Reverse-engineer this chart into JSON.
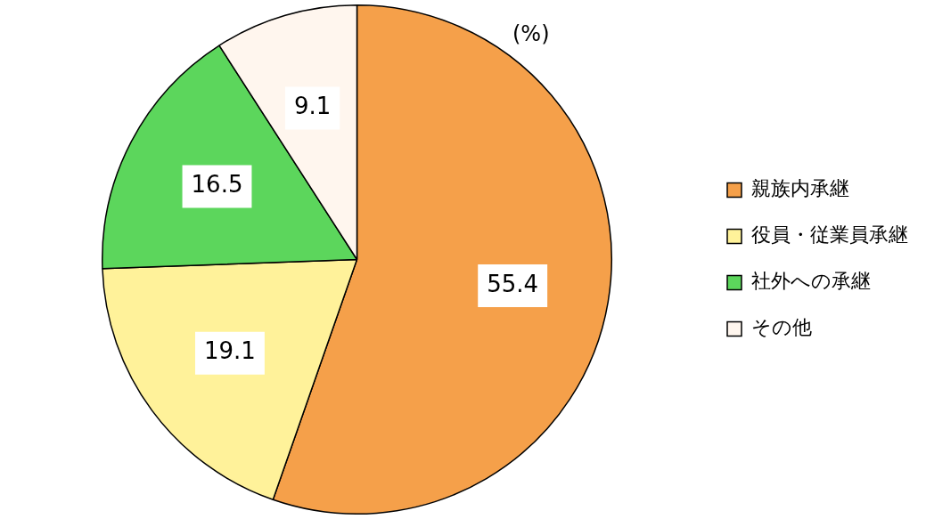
{
  "chart_data": {
    "type": "pie",
    "categories": [
      "親族内承継",
      "役員・従業員承継",
      "社外への承継",
      "その他"
    ],
    "values": [
      55.4,
      19.1,
      16.5,
      9.1
    ],
    "colors": [
      "#f5a04a",
      "#fff29a",
      "#5cd65c",
      "#fff6ee"
    ],
    "annotations": [
      "(%)"
    ],
    "data_labels": true,
    "legend": "right"
  }
}
